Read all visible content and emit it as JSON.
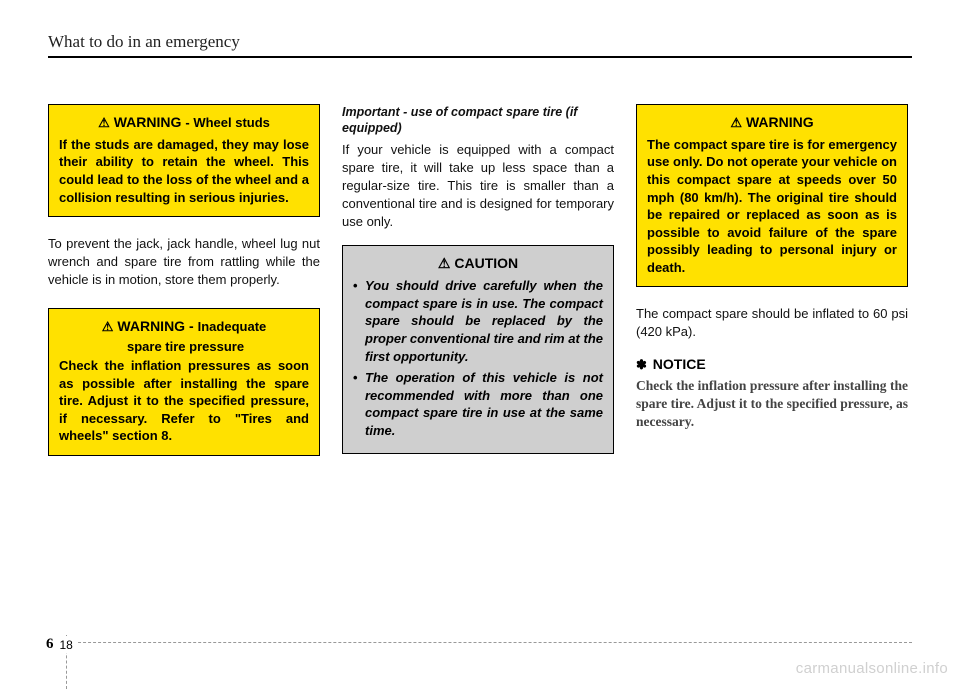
{
  "header": {
    "title": "What to do in an emergency"
  },
  "col1": {
    "warning1": {
      "label_main": "WARNING",
      "label_sub": "- Wheel studs",
      "body": "If the studs are damaged, they may lose their ability to retain the wheel. This could lead to the loss of the wheel and a collision resulting in serious injuries."
    },
    "para1": "To prevent the jack, jack handle, wheel lug nut wrench and spare tire from rattling while the vehicle is in motion, store them properly.",
    "warning2": {
      "label_main": "WARNING -",
      "label_sub1": "Inadequate",
      "label_sub2": "spare tire pressure",
      "body": "Check the inflation pressures as soon as possible after installing the spare tire. Adjust it to the specified pressure, if necessary. Refer to \"Tires and wheels\" section 8."
    }
  },
  "col2": {
    "italic_head": "Important - use of compact spare tire (if equipped)",
    "para1": "If your vehicle is equipped with a compact spare tire, it will take up less space than a regular-size tire. This tire is smaller than a conventional tire and is designed for temporary use only.",
    "caution": {
      "label": "CAUTION",
      "bullets": [
        "You should drive carefully when the compact spare is in use. The compact spare should be replaced by the proper conventional tire and rim at the first opportunity.",
        "The operation of this vehicle is not recommended with more than one compact spare tire in use at the same time."
      ]
    }
  },
  "col3": {
    "warning": {
      "label_main": "WARNING",
      "body": "The compact spare tire is for emergency use only.  Do not operate your vehicle on this compact spare at speeds over 50 mph (80 km/h). The original tire should be repaired or replaced as soon as is possible to avoid failure of the spare possibly leading to personal injury or death."
    },
    "para1": "The compact spare should be inflated to 60 psi (420 kPa).",
    "notice": {
      "label": "NOTICE",
      "body": "Check the inflation pressure after installing the spare tire. Adjust it to the specified pressure, as necessary."
    }
  },
  "footer": {
    "section": "6",
    "page": "18"
  },
  "watermark": "carmanualsonline.info",
  "icons": {
    "warning": "⚠",
    "caution": "⚠",
    "burst": "✽"
  }
}
